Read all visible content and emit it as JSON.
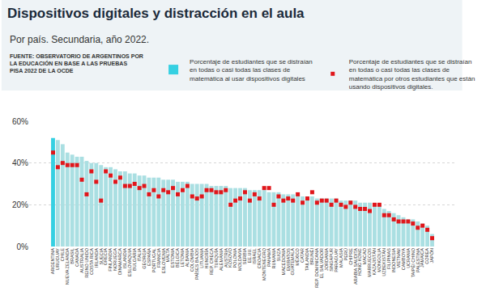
{
  "chart_data": {
    "type": "bar",
    "title": "Dispositivos digitales y distracción en el aula",
    "subtitle": "Por país. Secundaria, año 2022.",
    "annotations": [
      "FUENTE: OBSERVATORIO DE ARGENTINOS POR LA EDUCACIÓN EN BASE A LAS PRUEBAS PISA 2022 DE LA OCDE"
    ],
    "categories": [
      "ARGENTINA",
      "URUGUAY",
      "CHILE",
      "NUEVA ZELANDA",
      "BRASIL",
      "CANADÁ",
      "AUSTRALIA",
      "REINO UNIDO",
      "COSTA RICA",
      "IRLANDA",
      "SUECIA",
      "GRECIA",
      "FINLANDIA",
      "NORUEGA",
      "DINAMARCA",
      "ISLANDIA",
      "ESLOVAQUIA",
      "BULGARIA",
      "ITALIA",
      "GEORGIA",
      "ESPAÑA",
      "PORTUGAL",
      "FRANCIA",
      "ESLOVENIA",
      "MALTA",
      "ESTONIA",
      "BÉLGICA",
      "LETONIA",
      "ALBANIA",
      "COLOMBIA",
      "PAÍSES BAJOS",
      "LITUANIA",
      "HUNGRÍA",
      "REP. CHECA",
      "TURQUÍA",
      "ALEMANIA",
      "AUSTRIA",
      "KOSOVO",
      "POLONIA",
      "MOLDAVIA",
      "SERBIA",
      "EE.UU.",
      "ISRAEL",
      "CROACIA",
      "MONTENEGRO",
      "PANAMÁ",
      "RUMANIA",
      "SUIZA",
      "MACEDONIA",
      "EMIRATOS",
      "GUATEMALA",
      "MÉXICO",
      "CATAR",
      "TAILANDIA",
      "BRUNÉI",
      "REP. DOMINICANA",
      "EL SALVADOR",
      "JORDANIA",
      "SINGAPUR",
      "PARAGUAY",
      "MALASIA",
      "PERÚ",
      "CHIPRE",
      "ARABIA SAUDITA",
      "HONG KONG",
      "MACAO",
      "MARRUECOS",
      "KAZAJISTÁN",
      "MONGOLIA",
      "UZBEKISTÁN",
      "FILIPINAS",
      "INDONESIA",
      "VIETNAM",
      "CAMBOYA",
      "UCRANIA",
      "TAIPÉI CHINO",
      "PALESTINA",
      "JAMAICA",
      "COREA",
      "JAPÓN"
    ],
    "series": [
      {
        "name": "Porcentaje de estudiantes que se distraían en todas o casi todas las clases de matemática al usar dispositivos digitales",
        "type": "bar",
        "colors": [
          "#35d0e2",
          "#aadfe2",
          "#aadfe2",
          "#aadfe2",
          "#aadfe2",
          "#aadfe2",
          "#aadfe2",
          "#aadfe2",
          "#aadfe2",
          "#aadfe2",
          "#aadfe2",
          "#aadfe2",
          "#aadfe2",
          "#aadfe2",
          "#aadfe2",
          "#aadfe2",
          "#aadfe2",
          "#aadfe2",
          "#aadfe2",
          "#aadfe2",
          "#aadfe2",
          "#aadfe2",
          "#aadfe2",
          "#aadfe2",
          "#aadfe2",
          "#aadfe2",
          "#aadfe2",
          "#aadfe2",
          "#aadfe2",
          "#aadfe2",
          "#aadfe2",
          "#aadfe2",
          "#aadfe2",
          "#aadfe2",
          "#aadfe2",
          "#aadfe2",
          "#aadfe2",
          "#aadfe2",
          "#aadfe2",
          "#aadfe2",
          "#aadfe2",
          "#aadfe2",
          "#aadfe2",
          "#aadfe2",
          "#aadfe2",
          "#aadfe2",
          "#aadfe2",
          "#aadfe2",
          "#aadfe2",
          "#aadfe2",
          "#aadfe2",
          "#aadfe2",
          "#aadfe2",
          "#aadfe2",
          "#aadfe2",
          "#aadfe2",
          "#aadfe2",
          "#aadfe2",
          "#aadfe2",
          "#aadfe2",
          "#aadfe2",
          "#aadfe2",
          "#aadfe2",
          "#aadfe2",
          "#aadfe2",
          "#aadfe2",
          "#aadfe2",
          "#aadfe2",
          "#aadfe2",
          "#aadfe2",
          "#aadfe2",
          "#aadfe2",
          "#aadfe2",
          "#aadfe2",
          "#aadfe2",
          "#aadfe2",
          "#aadfe2",
          "#aadfe2",
          "#aadfe2",
          "#aadfe2"
        ],
        "values": [
          52,
          51,
          49,
          45,
          44,
          43,
          43,
          41,
          40,
          40,
          39,
          38,
          38,
          37,
          36,
          36,
          35,
          35,
          34,
          34,
          33,
          33,
          33,
          32,
          32,
          32,
          31,
          31,
          31,
          30,
          30,
          30,
          30,
          29,
          29,
          29,
          29,
          28,
          28,
          28,
          28,
          27,
          27,
          27,
          27,
          26,
          26,
          26,
          25,
          25,
          25,
          25,
          24,
          24,
          24,
          23,
          23,
          23,
          23,
          23,
          22,
          22,
          22,
          22,
          21,
          21,
          21,
          20,
          20,
          18,
          17,
          16,
          15,
          14,
          13,
          13,
          12,
          11,
          10,
          6
        ]
      },
      {
        "name": "Porcentaje de estudiantes que se distraían en todas o casi todas las clases de matemática por otros estudiantes que están usando dispositivos digitales.",
        "type": "scatter",
        "marker": "square",
        "color": "#e0161b",
        "values": [
          45,
          38,
          40,
          39,
          39,
          39,
          32,
          25,
          36,
          31,
          22,
          36,
          34,
          31,
          33,
          29,
          29,
          30,
          28,
          29,
          25,
          27,
          24,
          27,
          26,
          28,
          25,
          27,
          29,
          24,
          23,
          24,
          27,
          27,
          26,
          26,
          27,
          20,
          22,
          23,
          26,
          22,
          25,
          23,
          28,
          28,
          20,
          24,
          22,
          23,
          22,
          25,
          21,
          23,
          26,
          21,
          22,
          22,
          20,
          22,
          20,
          19,
          21,
          19,
          18,
          18,
          17,
          20,
          20,
          15,
          15,
          13,
          12,
          12,
          12,
          11,
          9,
          10,
          8,
          4
        ]
      }
    ],
    "ylim": [
      0,
      60
    ],
    "yticks": [
      {
        "value": 0,
        "label": "0%"
      },
      {
        "value": 20,
        "label": "20%"
      },
      {
        "value": 40,
        "label": "40%"
      },
      {
        "value": 60,
        "label": "60%"
      }
    ],
    "grid": true,
    "legend": "top"
  }
}
